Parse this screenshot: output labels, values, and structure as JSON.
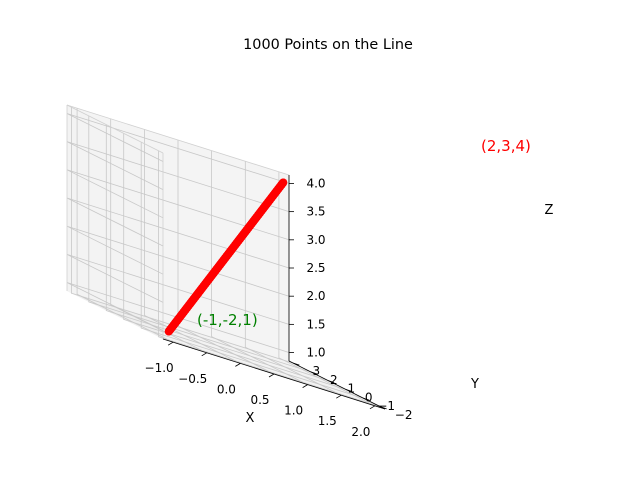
{
  "chart_data": {
    "type": "scatter",
    "projection": "3d",
    "title": "1000 Points on the Line",
    "xlabel": "X",
    "ylabel": "Y",
    "zlabel": "Z",
    "xlim": [
      -1.15,
      2.15
    ],
    "ylim": [
      -2.25,
      3.25
    ],
    "zlim": [
      0.85,
      4.15
    ],
    "xticks": [
      "−1.0",
      "−0.5",
      "0.0",
      "0.5",
      "1.0",
      "1.5",
      "2.0"
    ],
    "yticks": [
      "−2",
      "−1",
      "0",
      "1",
      "2",
      "3"
    ],
    "zticks": [
      "1.0",
      "1.5",
      "2.0",
      "2.5",
      "3.0",
      "3.5",
      "4.0"
    ],
    "grid": true,
    "series": [
      {
        "num_points": 1000,
        "start": {
          "x": -1,
          "y": -2,
          "z": 1
        },
        "end": {
          "x": 2,
          "y": 3,
          "z": 4
        },
        "color": "#ff0000"
      }
    ],
    "annotations": [
      {
        "text": "(-1,-2,1)",
        "x": -1,
        "y": -2,
        "z": 1,
        "color": "#008000"
      },
      {
        "text": "(2,3,4)",
        "x": 2,
        "y": 3,
        "z": 4,
        "color": "#ff0000"
      }
    ]
  }
}
